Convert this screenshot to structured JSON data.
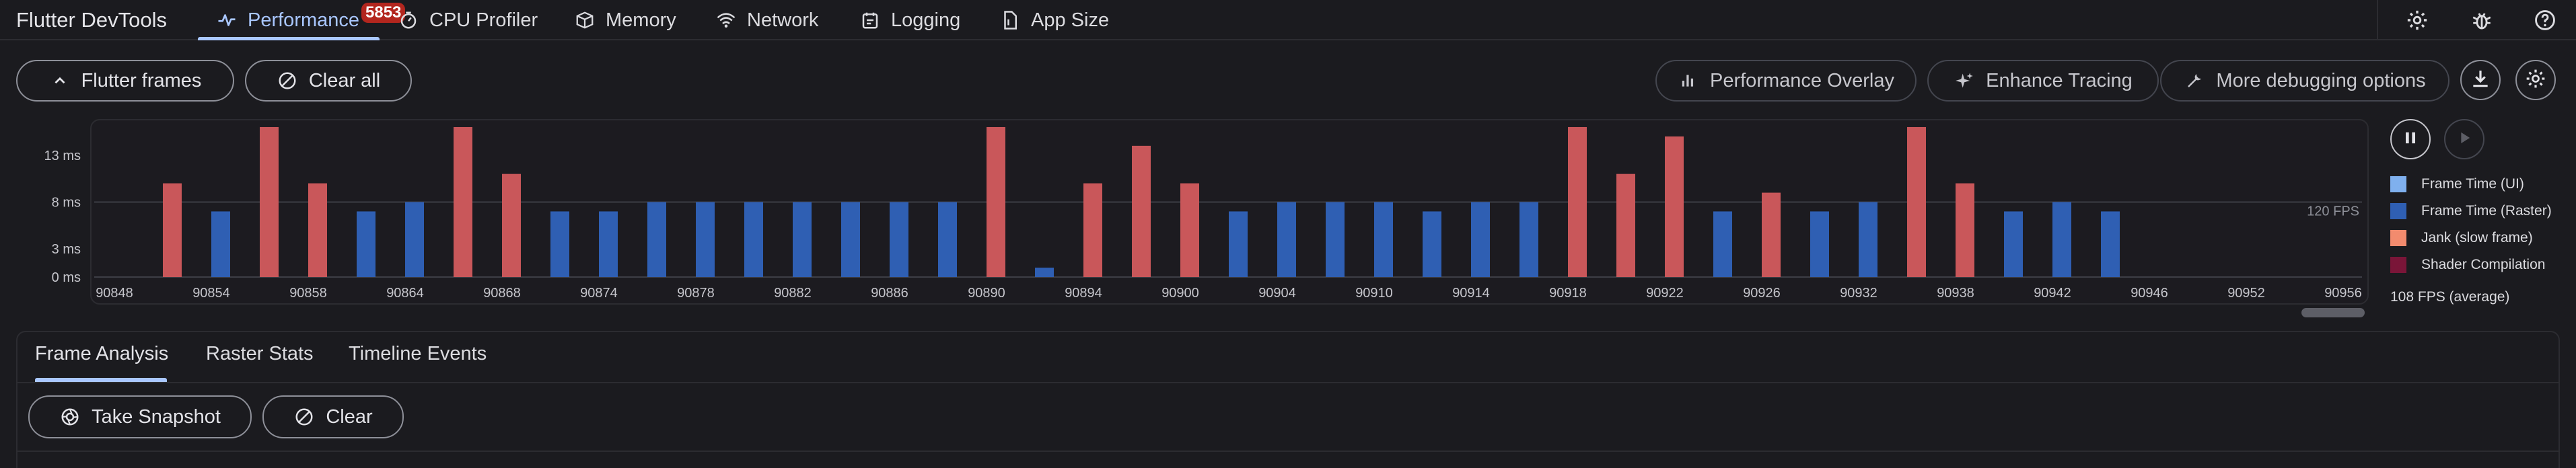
{
  "app": {
    "title": "Flutter DevTools"
  },
  "tabs": [
    {
      "label": "Performance",
      "icon": "performance-icon",
      "active": true,
      "badge": "5853"
    },
    {
      "label": "CPU Profiler",
      "icon": "timer-icon"
    },
    {
      "label": "Memory",
      "icon": "memory-icon"
    },
    {
      "label": "Network",
      "icon": "network-icon"
    },
    {
      "label": "Logging",
      "icon": "logging-icon"
    },
    {
      "label": "App Size",
      "icon": "app-size-icon"
    }
  ],
  "top_actions": [
    "settings-icon",
    "bug-icon",
    "help-icon"
  ],
  "toolbar": {
    "flutter_frames": "Flutter frames",
    "clear_all": "Clear all",
    "performance_overlay": "Performance Overlay",
    "enhance_tracing": "Enhance Tracing",
    "more_debugging": "More debugging options"
  },
  "chart_data": {
    "type": "bar",
    "yticks": [
      "13 ms",
      "8 ms",
      "3 ms",
      "0 ms"
    ],
    "target_label": "120 FPS",
    "x_labels": [
      "90848",
      "90854",
      "90858",
      "90864",
      "90868",
      "90874",
      "90878",
      "90882",
      "90886",
      "90890",
      "90894",
      "90900",
      "90904",
      "90910",
      "90914",
      "90918",
      "90922",
      "90926",
      "90932",
      "90938",
      "90942",
      "90946",
      "90952",
      "90956"
    ],
    "frames": [
      {
        "v": 10,
        "jank": true
      },
      {
        "v": 7,
        "jank": false
      },
      {
        "v": 16,
        "jank": true
      },
      {
        "v": 10,
        "jank": true
      },
      {
        "v": 7,
        "jank": false
      },
      {
        "v": 8,
        "jank": false
      },
      {
        "v": 16,
        "jank": true
      },
      {
        "v": 11,
        "jank": true
      },
      {
        "v": 7,
        "jank": false
      },
      {
        "v": 7,
        "jank": false
      },
      {
        "v": 8,
        "jank": false
      },
      {
        "v": 8,
        "jank": false
      },
      {
        "v": 8,
        "jank": false
      },
      {
        "v": 8,
        "jank": false
      },
      {
        "v": 8,
        "jank": false
      },
      {
        "v": 8,
        "jank": false
      },
      {
        "v": 8,
        "jank": false
      },
      {
        "v": 16,
        "jank": true
      },
      {
        "v": 1,
        "jank": false
      },
      {
        "v": 10,
        "jank": true
      },
      {
        "v": 14,
        "jank": true
      },
      {
        "v": 10,
        "jank": true
      },
      {
        "v": 7,
        "jank": false
      },
      {
        "v": 8,
        "jank": false
      },
      {
        "v": 8,
        "jank": false
      },
      {
        "v": 8,
        "jank": false
      },
      {
        "v": 7,
        "jank": false
      },
      {
        "v": 8,
        "jank": false
      },
      {
        "v": 8,
        "jank": false
      },
      {
        "v": 16,
        "jank": true
      },
      {
        "v": 11,
        "jank": true
      },
      {
        "v": 15,
        "jank": true
      },
      {
        "v": 7,
        "jank": false
      },
      {
        "v": 9,
        "jank": true
      },
      {
        "v": 7,
        "jank": false
      },
      {
        "v": 8,
        "jank": false
      },
      {
        "v": 16,
        "jank": true
      },
      {
        "v": 10,
        "jank": true
      },
      {
        "v": 7,
        "jank": false
      },
      {
        "v": 8,
        "jank": false
      },
      {
        "v": 7,
        "jank": false
      }
    ],
    "ylim": [
      0,
      16.5
    ],
    "colors": {
      "ui": "#7fb0ee",
      "raster": "#2f5fb3",
      "jank": "#c9575a",
      "shader": "#6a1633"
    }
  },
  "legend": [
    {
      "label": "Frame Time (UI)",
      "color": "#7fb0ee"
    },
    {
      "label": "Frame Time (Raster)",
      "color": "#2f5fb3"
    },
    {
      "label": "Jank (slow frame)",
      "color": "#f28b6e"
    },
    {
      "label": "Shader Compilation",
      "color": "#7a1538"
    }
  ],
  "fps_avg": "108 FPS (average)",
  "subtabs": [
    "Frame Analysis",
    "Raster Stats",
    "Timeline Events"
  ],
  "bottom_toolbar": {
    "take_snapshot": "Take Snapshot",
    "clear": "Clear"
  }
}
